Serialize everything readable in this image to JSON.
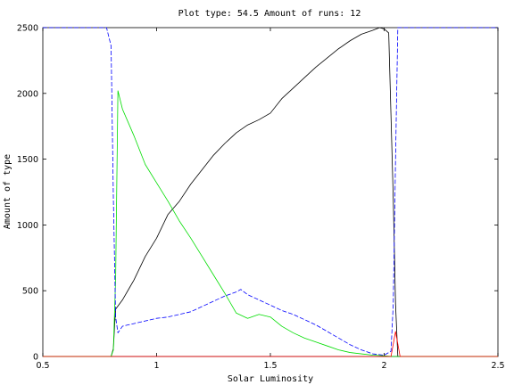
{
  "chart_data": {
    "type": "line",
    "title": "Plot type: 54.5 Amount of runs: 12",
    "xlabel": "Solar Luminosity",
    "ylabel": "Amount of type",
    "xlim": [
      0.5,
      2.5
    ],
    "ylim": [
      0,
      2500
    ],
    "xticks": [
      0.5,
      1,
      1.5,
      2,
      2.5
    ],
    "xtick_labels": [
      "0.5",
      "1",
      "1.5",
      "2",
      "2.5"
    ],
    "yticks": [
      0,
      500,
      1000,
      1500,
      2000,
      2500
    ],
    "ytick_labels": [
      "0",
      "500",
      "1000",
      "1500",
      "2000",
      "2500"
    ],
    "grid": false,
    "series": [
      {
        "color": "#000000",
        "dash": "solid",
        "points": [
          [
            0.5,
            0
          ],
          [
            0.8,
            0
          ],
          [
            0.81,
            60
          ],
          [
            0.815,
            220
          ],
          [
            0.82,
            360
          ],
          [
            0.85,
            430
          ],
          [
            0.88,
            520
          ],
          [
            0.9,
            580
          ],
          [
            0.95,
            760
          ],
          [
            1.0,
            900
          ],
          [
            1.05,
            1080
          ],
          [
            1.1,
            1180
          ],
          [
            1.15,
            1310
          ],
          [
            1.2,
            1420
          ],
          [
            1.25,
            1530
          ],
          [
            1.3,
            1620
          ],
          [
            1.35,
            1700
          ],
          [
            1.4,
            1760
          ],
          [
            1.45,
            1800
          ],
          [
            1.5,
            1850
          ],
          [
            1.55,
            1960
          ],
          [
            1.6,
            2040
          ],
          [
            1.65,
            2120
          ],
          [
            1.7,
            2200
          ],
          [
            1.75,
            2270
          ],
          [
            1.8,
            2340
          ],
          [
            1.85,
            2400
          ],
          [
            1.9,
            2450
          ],
          [
            1.95,
            2480
          ],
          [
            1.98,
            2500
          ],
          [
            2.0,
            2490
          ],
          [
            2.02,
            2460
          ],
          [
            2.04,
            1200
          ],
          [
            2.05,
            400
          ],
          [
            2.06,
            0
          ],
          [
            2.5,
            0
          ]
        ]
      },
      {
        "color": "#00dd00",
        "dash": "solid",
        "points": [
          [
            0.5,
            0
          ],
          [
            0.8,
            0
          ],
          [
            0.81,
            50
          ],
          [
            0.82,
            600
          ],
          [
            0.83,
            2020
          ],
          [
            0.85,
            1880
          ],
          [
            0.9,
            1680
          ],
          [
            0.95,
            1460
          ],
          [
            1.0,
            1320
          ],
          [
            1.05,
            1180
          ],
          [
            1.1,
            1030
          ],
          [
            1.15,
            900
          ],
          [
            1.2,
            760
          ],
          [
            1.25,
            620
          ],
          [
            1.3,
            480
          ],
          [
            1.35,
            330
          ],
          [
            1.4,
            290
          ],
          [
            1.45,
            320
          ],
          [
            1.5,
            300
          ],
          [
            1.55,
            230
          ],
          [
            1.6,
            180
          ],
          [
            1.65,
            140
          ],
          [
            1.7,
            110
          ],
          [
            1.75,
            80
          ],
          [
            1.8,
            50
          ],
          [
            1.85,
            30
          ],
          [
            1.9,
            20
          ],
          [
            1.95,
            10
          ],
          [
            2.0,
            5
          ],
          [
            2.04,
            0
          ],
          [
            2.5,
            0
          ]
        ]
      },
      {
        "color": "#0000ff",
        "dash": "dashed",
        "points": [
          [
            0.5,
            2500
          ],
          [
            0.78,
            2500
          ],
          [
            0.8,
            2360
          ],
          [
            0.81,
            1200
          ],
          [
            0.82,
            300
          ],
          [
            0.83,
            180
          ],
          [
            0.85,
            230
          ],
          [
            0.9,
            250
          ],
          [
            0.95,
            270
          ],
          [
            1.0,
            290
          ],
          [
            1.05,
            300
          ],
          [
            1.1,
            320
          ],
          [
            1.15,
            340
          ],
          [
            1.2,
            380
          ],
          [
            1.25,
            420
          ],
          [
            1.3,
            460
          ],
          [
            1.35,
            490
          ],
          [
            1.37,
            510
          ],
          [
            1.4,
            470
          ],
          [
            1.45,
            430
          ],
          [
            1.5,
            390
          ],
          [
            1.55,
            350
          ],
          [
            1.6,
            320
          ],
          [
            1.65,
            280
          ],
          [
            1.7,
            240
          ],
          [
            1.75,
            190
          ],
          [
            1.8,
            140
          ],
          [
            1.85,
            90
          ],
          [
            1.9,
            50
          ],
          [
            1.95,
            20
          ],
          [
            2.0,
            10
          ],
          [
            2.03,
            40
          ],
          [
            2.04,
            400
          ],
          [
            2.05,
            1500
          ],
          [
            2.06,
            2500
          ],
          [
            2.5,
            2500
          ]
        ]
      },
      {
        "color": "#ff0000",
        "dash": "solid",
        "points": [
          [
            0.5,
            0
          ],
          [
            2.03,
            0
          ],
          [
            2.05,
            190
          ],
          [
            2.07,
            0
          ],
          [
            2.5,
            0
          ]
        ]
      }
    ]
  }
}
